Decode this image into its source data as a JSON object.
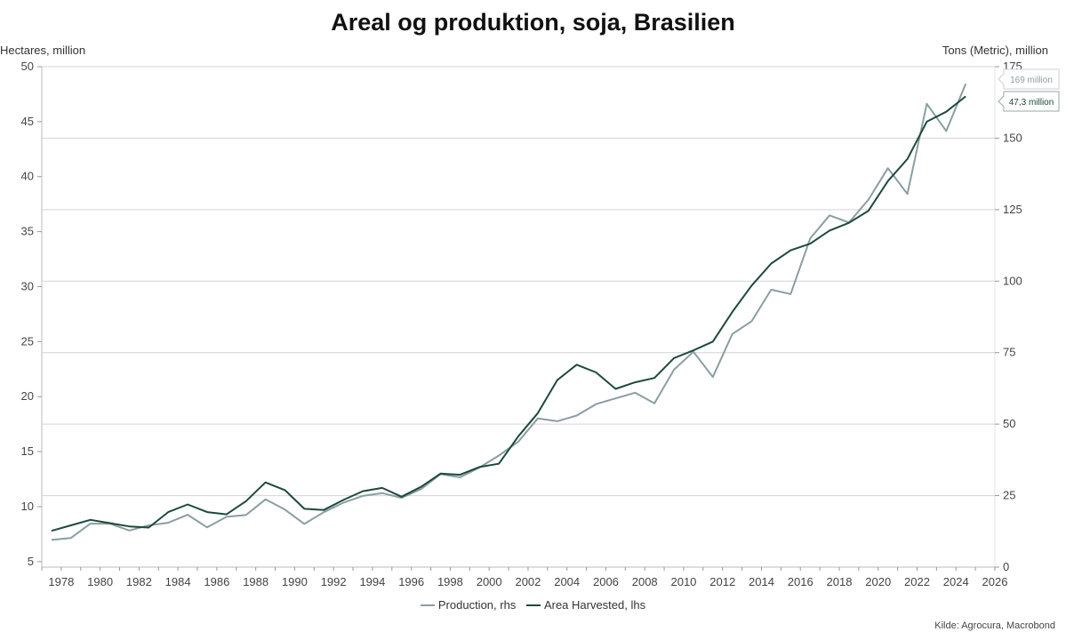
{
  "chart_data": {
    "type": "line",
    "title": "Areal og produktion, soja, Brasilien",
    "ylabel_left": "Hectares, million",
    "ylabel_right": "Tons (Metric), million",
    "ylim_left": [
      4.5,
      50
    ],
    "ylim_right": [
      0,
      175
    ],
    "yticks_left": [
      5,
      10,
      15,
      20,
      25,
      30,
      35,
      40,
      45,
      50
    ],
    "yticks_right": [
      0,
      25,
      50,
      75,
      100,
      125,
      150,
      175
    ],
    "xlim": [
      1977,
      2026
    ],
    "xticks": [
      1978,
      1980,
      1982,
      1984,
      1986,
      1988,
      1990,
      1992,
      1994,
      1996,
      1998,
      2000,
      2002,
      2004,
      2006,
      2008,
      2010,
      2012,
      2014,
      2016,
      2018,
      2020,
      2022,
      2024,
      2026
    ],
    "grid": "horizontal",
    "legend_position": "bottom",
    "series": [
      {
        "name": "Production, rhs",
        "axis": "right",
        "color": "#8a9ea3",
        "x": [
          1977.5,
          1978.5,
          1979.5,
          1980.5,
          1981.5,
          1982.5,
          1983.5,
          1984.5,
          1985.5,
          1986.5,
          1987.5,
          1988.5,
          1989.5,
          1990.5,
          1991.5,
          1992.5,
          1993.5,
          1994.5,
          1995.5,
          1996.5,
          1997.5,
          1998.5,
          1999.5,
          2000.5,
          2001.5,
          2002.5,
          2003.5,
          2004.5,
          2005.5,
          2006.5,
          2007.5,
          2008.5,
          2009.5,
          2010.5,
          2011.5,
          2012.5,
          2013.5,
          2014.5,
          2015.5,
          2016.5,
          2017.5,
          2018.5,
          2019.5,
          2020.5,
          2021.5,
          2022.5,
          2023.5,
          2024.5
        ],
        "values": [
          9.5,
          10.2,
          15.2,
          15.2,
          12.8,
          14.6,
          15.5,
          18.3,
          13.9,
          17.6,
          18.2,
          23.7,
          20.1,
          15.1,
          19.2,
          22.5,
          24.9,
          25.9,
          24.2,
          27.3,
          32.5,
          31.4,
          34.8,
          39.0,
          43.9,
          52.0,
          51.0,
          53.0,
          57.0,
          59.0,
          61.0,
          57.3,
          69.0,
          75.3,
          66.5,
          81.5,
          86.0,
          97.0,
          95.5,
          114.9,
          123.0,
          120.5,
          128.5,
          139.5,
          130.5,
          162.0,
          152.5,
          169.0
        ]
      },
      {
        "name": "Area Harvested, lhs",
        "axis": "left",
        "color": "#1d4a3a",
        "x": [
          1977.5,
          1978.5,
          1979.5,
          1980.5,
          1981.5,
          1982.5,
          1983.5,
          1984.5,
          1985.5,
          1986.5,
          1987.5,
          1988.5,
          1989.5,
          1990.5,
          1991.5,
          1992.5,
          1993.5,
          1994.5,
          1995.5,
          1996.5,
          1997.5,
          1998.5,
          1999.5,
          2000.5,
          2001.5,
          2002.5,
          2003.5,
          2004.5,
          2005.5,
          2006.5,
          2007.5,
          2008.5,
          2009.5,
          2010.5,
          2011.5,
          2012.5,
          2013.5,
          2014.5,
          2015.5,
          2016.5,
          2017.5,
          2018.5,
          2019.5,
          2020.5,
          2021.5,
          2022.5,
          2023.5,
          2024.5
        ],
        "values": [
          7.8,
          8.3,
          8.8,
          8.5,
          8.2,
          8.1,
          9.5,
          10.2,
          9.5,
          9.3,
          10.5,
          12.2,
          11.5,
          9.8,
          9.7,
          10.6,
          11.4,
          11.7,
          10.9,
          11.8,
          13.0,
          12.9,
          13.6,
          13.9,
          16.4,
          18.5,
          21.5,
          22.9,
          22.2,
          20.7,
          21.3,
          21.7,
          23.5,
          24.2,
          25.0,
          27.7,
          30.1,
          32.1,
          33.3,
          33.9,
          35.1,
          35.8,
          36.9,
          39.6,
          41.6,
          45.0,
          45.9,
          47.3
        ]
      }
    ],
    "end_labels": [
      {
        "text": "169 million",
        "series": "Production, rhs",
        "value": 169,
        "axis": "right"
      },
      {
        "text": "47,3 million",
        "series": "Area Harvested, lhs",
        "value": 47.3,
        "axis": "left"
      }
    ],
    "source": "Kilde: Agrocura, Macrobond"
  }
}
